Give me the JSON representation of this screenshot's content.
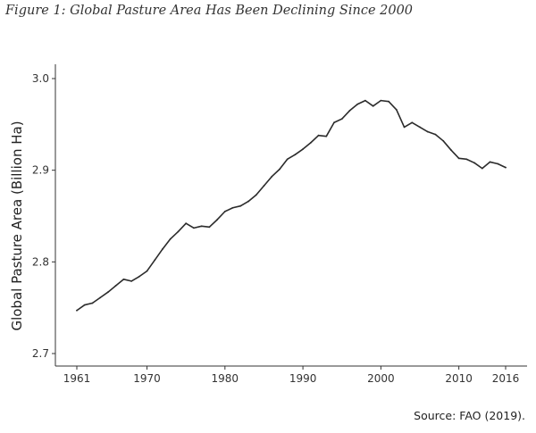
{
  "figure_title": "Figure 1: Global Pasture Area Has Been Declining Since 2000",
  "source_note": "Source: FAO (2019).",
  "colors": {
    "line": "#2b2b2b",
    "axis": "#333333",
    "text": "#222222"
  },
  "chart_data": {
    "type": "line",
    "title": "Figure 1: Global Pasture Area Has Been Declining Since 2000",
    "xlabel": "",
    "ylabel": "Global Pasture Area (Billion Ha)",
    "xlim": [
      1961,
      2016
    ],
    "ylim": [
      2.7,
      3.0
    ],
    "grid": false,
    "x_ticks": [
      1961,
      1970,
      1980,
      1990,
      2000,
      2010,
      2016
    ],
    "y_ticks": [
      2.7,
      2.8,
      2.9,
      3.0
    ],
    "x_tick_labels": [
      "1961",
      "1970",
      "1980",
      "1990",
      "2000",
      "2010",
      "2016"
    ],
    "y_tick_labels": [
      "2.7",
      "2.8",
      "2.9",
      "3.0"
    ],
    "series": [
      {
        "x": [
          1961,
          1962,
          1963,
          1964,
          1965,
          1966,
          1967,
          1968,
          1969,
          1970,
          1971,
          1972,
          1973,
          1974,
          1975,
          1976,
          1977,
          1978,
          1979,
          1980,
          1981,
          1982,
          1983,
          1984,
          1985,
          1986,
          1987,
          1988,
          1989,
          1990,
          1991,
          1992,
          1993,
          1994,
          1995,
          1996,
          1997,
          1998,
          1999,
          2000,
          2001,
          2002,
          2003,
          2004,
          2005,
          2006,
          2007,
          2008,
          2009,
          2010,
          2011,
          2012,
          2013,
          2014,
          2015,
          2016
        ],
        "values": [
          2.747,
          2.753,
          2.755,
          2.761,
          2.767,
          2.774,
          2.781,
          2.779,
          2.784,
          2.79,
          2.802,
          2.814,
          2.825,
          2.833,
          2.842,
          2.837,
          2.839,
          2.838,
          2.846,
          2.855,
          2.859,
          2.861,
          2.866,
          2.873,
          2.883,
          2.893,
          2.901,
          2.912,
          2.917,
          2.923,
          2.93,
          2.938,
          2.937,
          2.952,
          2.956,
          2.965,
          2.972,
          2.976,
          2.97,
          2.976,
          2.975,
          2.966,
          2.947,
          2.952,
          2.947,
          2.942,
          2.939,
          2.932,
          2.922,
          2.913,
          2.912,
          2.908,
          2.902,
          2.909,
          2.907,
          2.903
        ]
      }
    ]
  }
}
